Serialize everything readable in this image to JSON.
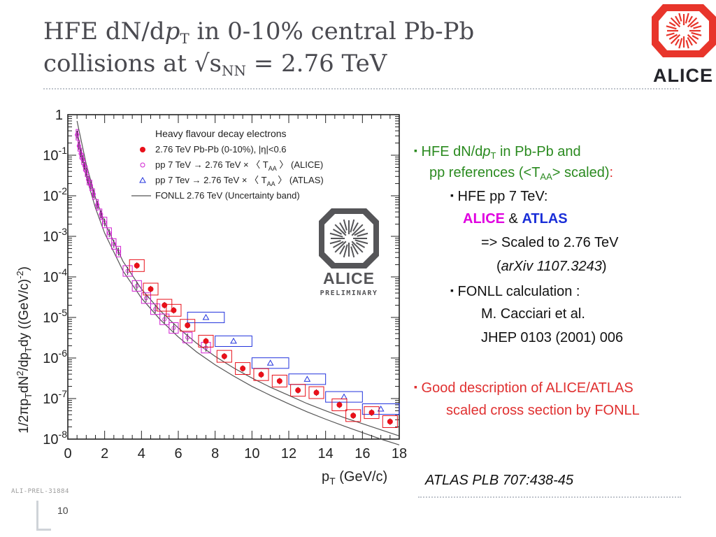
{
  "title": {
    "line1_a": "HFE dN/d",
    "line1_p": "p",
    "line1_sub": "T",
    "line1_b": " in 0-10% central Pb-Pb",
    "line2_a": "collisions at √s",
    "line2_sub": "NN",
    "line2_b": " = 2.76 TeV"
  },
  "logo": {
    "text": "ALICE",
    "color": "#e8352b"
  },
  "preliminary": {
    "text": "ALICE",
    "subtext": "PRELIMINARY",
    "tag": "ALI-PREL-31884"
  },
  "bullets": {
    "b1_a": "HFE dN/d",
    "b1_p": "p",
    "b1_sub": "T",
    "b1_b": " in Pb-Pb and",
    "b1_c": "pp references (<T",
    "b1_csub": "AA",
    "b1_d": "> scaled)",
    "b1_colon": ":",
    "b2": "HFE pp 7 TeV:",
    "b2_alice": "ALICE",
    "b2_amp": " & ",
    "b2_atlas": "ATLAS",
    "b2_scaled": "=> Scaled to 2.76 TeV",
    "b2_arxiv": "arXiv 1107.3243",
    "b3": "FONLL calculation :",
    "b3_ref1": "M. Cacciari et al.",
    "b3_ref2": "JHEP 0103 (2001) 006",
    "b4_a": "Good description of ALICE/ATLAS",
    "b4_b": "scaled cross section by FONLL",
    "bullet_char": "▪"
  },
  "reference": "ATLAS PLB 707:438-45",
  "page_number": "10",
  "chart_data": {
    "type": "scatter",
    "xlabel_main": "p",
    "xlabel_sub": "T",
    "xlabel_rest": " (GeV/c)",
    "ylabel_parts": [
      "1/2πp",
      "T",
      "dN",
      "2",
      "/dp",
      "T",
      "dy ((GeV/c)",
      "-2",
      ")"
    ],
    "x_range": [
      0,
      18
    ],
    "y_range_log10": [
      -8,
      0
    ],
    "y_log": true,
    "x_ticks": [
      "0",
      "2",
      "4",
      "6",
      "8",
      "10",
      "12",
      "14",
      "16",
      "18"
    ],
    "y_ticks": [
      {
        "base": "1",
        "exp": ""
      },
      {
        "base": "10",
        "exp": "-1"
      },
      {
        "base": "10",
        "exp": "-2"
      },
      {
        "base": "10",
        "exp": "-3"
      },
      {
        "base": "10",
        "exp": "-4"
      },
      {
        "base": "10",
        "exp": "-5"
      },
      {
        "base": "10",
        "exp": "-6"
      },
      {
        "base": "10",
        "exp": "-7"
      },
      {
        "base": "10",
        "exp": "-8"
      }
    ],
    "legend": {
      "header": "Heavy flavour decay electrons",
      "entries": [
        {
          "label": "2.76 TeV Pb-Pb (0-10%), |η|<0.6",
          "marker": "filled-circle",
          "color": "#e8101a"
        },
        {
          "label": "pp 7 TeV → 2.76 TeV × 〈 T",
          "sub": "AA",
          "label_end": " 〉 (ALICE)",
          "marker": "open-circle",
          "color": "#d020d0"
        },
        {
          "label": "pp 7 Tev → 2.76 TeV × 〈 T",
          "sub": "AA",
          "label_end": " 〉 (ATLAS)",
          "marker": "open-triangle",
          "color": "#2233dd"
        },
        {
          "label": "FONLL 2.76 TeV (Uncertainty band)",
          "marker": "line",
          "color": "#555555"
        }
      ],
      "position": "top-right"
    },
    "series": [
      {
        "name": "2.76 TeV Pb-Pb (0-10%), |η|<0.6",
        "x": [
          3.75,
          4.5,
          5.25,
          5.75,
          6.5,
          7.5,
          8.5,
          9.5,
          10.5,
          11.5,
          12.5,
          13.5,
          14.75,
          15.5,
          16.5,
          17.5
        ],
        "y": [
          0.00019,
          5e-05,
          2e-05,
          1.5e-05,
          6.4e-06,
          2.6e-06,
          1.1e-06,
          5.5e-07,
          3.9e-07,
          2.7e-07,
          1.6e-07,
          1.4e-07,
          7e-08,
          3.8e-08,
          4.5e-08,
          2.7e-08
        ]
      },
      {
        "name": "pp 7 TeV → 2.76 TeV × 〈 TAA 〉 (ALICE)",
        "x": [
          0.5,
          0.6,
          0.7,
          0.8,
          0.9,
          1.0,
          1.1,
          1.25,
          1.4,
          1.6,
          1.8,
          2.0,
          2.25,
          2.5,
          2.75,
          3.25,
          3.75,
          4.25,
          4.75,
          5.25,
          5.75,
          6.5,
          7.5
        ],
        "y": [
          0.32,
          0.17,
          0.11,
          0.08,
          0.055,
          0.04,
          0.025,
          0.018,
          0.011,
          0.006,
          0.0035,
          0.0022,
          0.0012,
          0.00065,
          0.00042,
          0.00014,
          6e-05,
          3e-05,
          1.6e-05,
          9e-06,
          5.5e-06,
          3.2e-06,
          1.8e-06
        ]
      },
      {
        "name": "pp 7 Tev → 2.76 TeV × 〈 TAA 〉 (ATLAS)",
        "x": [
          7.5,
          9.0,
          11.0,
          13.0,
          15.0,
          17.0
        ],
        "y": [
          1e-05,
          2.6e-06,
          7.5e-07,
          3e-07,
          1.1e-07,
          5.5e-08
        ]
      },
      {
        "name": "FONLL 2.76 TeV (Uncertainty band)",
        "x": [
          0.5,
          1,
          1.5,
          2,
          3,
          4,
          5,
          6,
          7,
          8,
          9,
          10,
          11,
          12,
          13,
          14,
          15,
          16,
          17,
          18
        ],
        "y_low": [
          0.4,
          0.03,
          0.005,
          0.0012,
          0.00014,
          3e-05,
          9e-06,
          3.3e-06,
          1.4e-06,
          6.8e-07,
          3.6e-07,
          2e-07,
          1.2e-07,
          7.4e-08,
          4.7e-08,
          3.1e-08,
          2.1e-08,
          1.45e-08,
          1e-08,
          7.2e-09
        ],
        "y_high": [
          0.7,
          0.06,
          0.009,
          0.0022,
          0.00024,
          5e-05,
          1.5e-05,
          5.5e-06,
          2.3e-06,
          1.1e-06,
          5.7e-07,
          3.2e-07,
          1.9e-07,
          1.2e-07,
          7.5e-08,
          5e-08,
          3.4e-08,
          2.4e-08,
          1.7e-08,
          1.2e-08
        ]
      }
    ]
  }
}
